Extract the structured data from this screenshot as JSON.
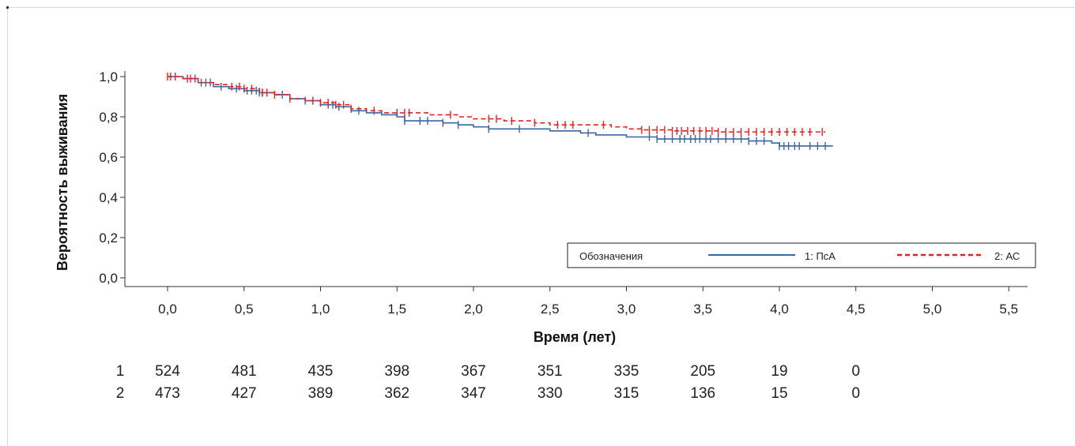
{
  "chart_data": {
    "type": "line",
    "title": "",
    "xlabel": "Время (лет)",
    "ylabel": "Вероятность выживания",
    "xlim": [
      -0.25,
      5.6
    ],
    "ylim": [
      -0.01,
      1.02
    ],
    "x_ticks": [
      "0,0",
      "0,5",
      "1,0",
      "1,5",
      "2,0",
      "2,5",
      "3,0",
      "3,5",
      "4,0",
      "4,5",
      "5,0",
      "5,5"
    ],
    "x_tick_values": [
      0,
      0.5,
      1,
      1.5,
      2,
      2.5,
      3,
      3.5,
      4,
      4.5,
      5,
      5.5
    ],
    "y_ticks": [
      "0,0",
      "0,2",
      "0,4",
      "0,6",
      "0,8",
      "1,0"
    ],
    "y_tick_values": [
      0,
      0.2,
      0.4,
      0.6,
      0.8,
      1.0
    ],
    "legend": {
      "title": "Обозначения",
      "placement": "bottom-right",
      "entries": [
        {
          "label": "1: ПсА",
          "color": "#3a66a4",
          "style": "solid"
        },
        {
          "label": "2: АС",
          "color": "#e32222",
          "style": "dashed"
        }
      ]
    },
    "series": [
      {
        "name": "1: ПсА",
        "color": "#3a66a4",
        "style": "solid",
        "x": [
          0,
          0.1,
          0.2,
          0.3,
          0.4,
          0.5,
          0.6,
          0.7,
          0.8,
          0.9,
          1.0,
          1.1,
          1.2,
          1.3,
          1.4,
          1.5,
          1.55,
          1.7,
          1.8,
          1.9,
          2.0,
          2.1,
          2.3,
          2.5,
          2.7,
          2.8,
          3.0,
          3.2,
          3.5,
          3.8,
          3.95,
          4.0,
          4.35
        ],
        "y": [
          1.0,
          0.99,
          0.97,
          0.95,
          0.94,
          0.93,
          0.92,
          0.91,
          0.89,
          0.88,
          0.86,
          0.85,
          0.83,
          0.82,
          0.81,
          0.8,
          0.78,
          0.78,
          0.77,
          0.76,
          0.75,
          0.74,
          0.74,
          0.73,
          0.72,
          0.71,
          0.7,
          0.69,
          0.69,
          0.68,
          0.67,
          0.655,
          0.655
        ],
        "censor_x": [
          0.22,
          0.25,
          0.28,
          0.35,
          0.45,
          0.52,
          0.55,
          0.58,
          0.6,
          0.62,
          0.75,
          0.9,
          1.05,
          1.08,
          1.12,
          1.25,
          1.55,
          1.65,
          1.7,
          1.8,
          1.9,
          2.1,
          2.3,
          2.75,
          3.15,
          3.2,
          3.25,
          3.3,
          3.35,
          3.38,
          3.42,
          3.45,
          3.48,
          3.52,
          3.55,
          3.6,
          3.65,
          3.7,
          3.75,
          3.8,
          3.85,
          3.9,
          4.0,
          4.03,
          4.06,
          4.1,
          4.13,
          4.2,
          4.25,
          4.3
        ]
      },
      {
        "name": "2: АС",
        "color": "#e32222",
        "style": "dashed",
        "x": [
          0,
          0.1,
          0.2,
          0.3,
          0.4,
          0.5,
          0.6,
          0.7,
          0.8,
          0.9,
          1.0,
          1.1,
          1.2,
          1.3,
          1.4,
          1.5,
          1.7,
          1.9,
          2.0,
          2.2,
          2.4,
          2.5,
          2.7,
          2.9,
          3.0,
          3.1,
          3.3,
          3.6,
          4.0,
          4.3
        ],
        "y": [
          1.0,
          0.99,
          0.97,
          0.96,
          0.95,
          0.94,
          0.92,
          0.91,
          0.89,
          0.88,
          0.87,
          0.86,
          0.84,
          0.83,
          0.82,
          0.82,
          0.81,
          0.8,
          0.79,
          0.78,
          0.77,
          0.76,
          0.76,
          0.75,
          0.74,
          0.735,
          0.73,
          0.725,
          0.725,
          0.725
        ],
        "censor_x": [
          0.0,
          0.02,
          0.05,
          0.13,
          0.15,
          0.18,
          0.42,
          0.47,
          0.5,
          0.55,
          0.62,
          0.65,
          0.7,
          0.8,
          0.95,
          1.0,
          1.05,
          1.1,
          1.15,
          1.2,
          1.35,
          1.5,
          1.55,
          1.58,
          1.85,
          2.1,
          2.15,
          2.25,
          2.4,
          2.55,
          2.6,
          2.65,
          2.85,
          3.1,
          3.15,
          3.2,
          3.25,
          3.3,
          3.33,
          3.36,
          3.4,
          3.44,
          3.48,
          3.52,
          3.56,
          3.6,
          3.65,
          3.7,
          3.75,
          3.8,
          3.85,
          3.9,
          3.95,
          4.0,
          4.05,
          4.1,
          4.15,
          4.2,
          4.28
        ]
      }
    ],
    "risk_table": {
      "rows": [
        {
          "label": "1",
          "values": [
            "524",
            "481",
            "435",
            "398",
            "367",
            "351",
            "335",
            "205",
            "19",
            "0"
          ]
        },
        {
          "label": "2",
          "values": [
            "473",
            "427",
            "389",
            "362",
            "347",
            "330",
            "315",
            "136",
            "15",
            "0"
          ]
        }
      ]
    }
  }
}
